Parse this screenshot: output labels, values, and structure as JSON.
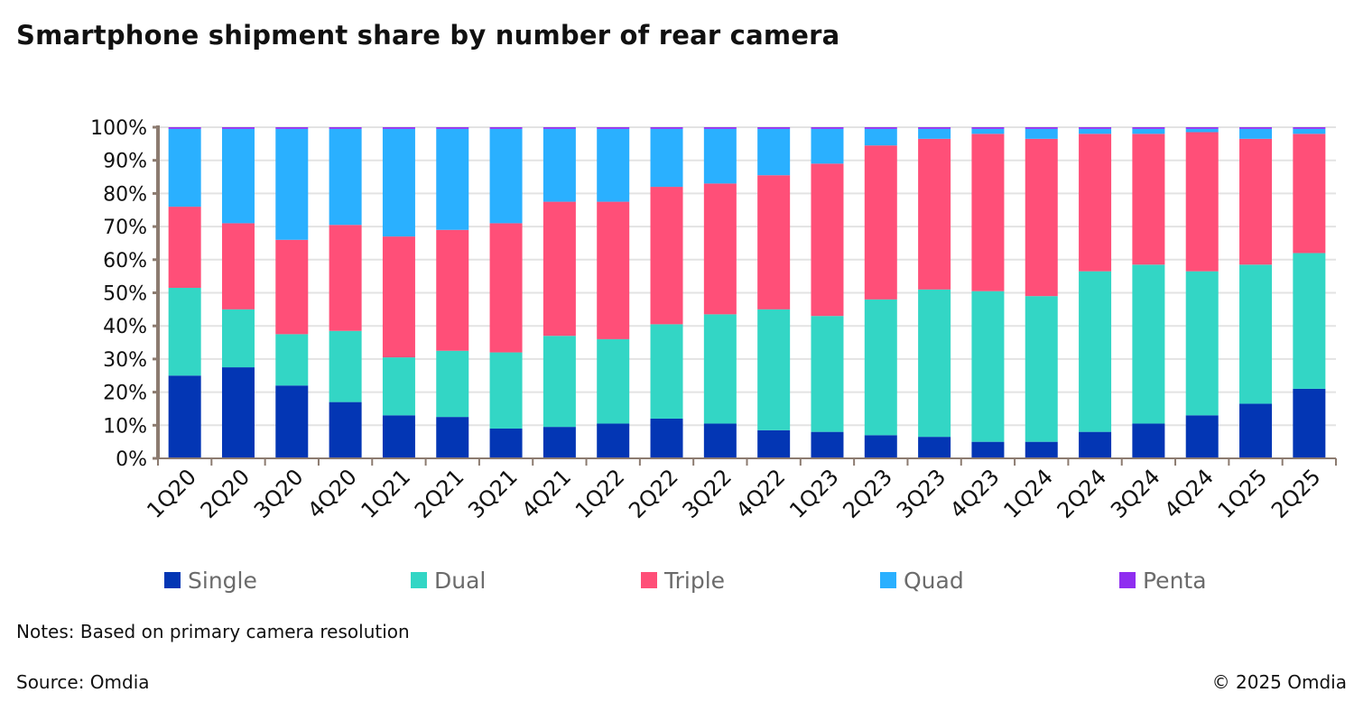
{
  "chart_data": {
    "type": "bar",
    "stacked": true,
    "title": "Smartphone shipment share by number of rear camera",
    "xlabel": "",
    "ylabel": "",
    "ylim": [
      0,
      100
    ],
    "yticks": [
      "0%",
      "10%",
      "20%",
      "30%",
      "40%",
      "50%",
      "60%",
      "70%",
      "80%",
      "90%",
      "100%"
    ],
    "grid": true,
    "legend_position": "bottom",
    "categories": [
      "1Q20",
      "2Q20",
      "3Q20",
      "4Q20",
      "1Q21",
      "2Q21",
      "3Q21",
      "4Q21",
      "1Q22",
      "2Q22",
      "3Q22",
      "4Q22",
      "1Q23",
      "2Q23",
      "3Q23",
      "4Q23",
      "1Q24",
      "2Q24",
      "3Q24",
      "4Q24",
      "1Q25",
      "2Q25"
    ],
    "series": [
      {
        "name": "Single",
        "color": "#0336b4",
        "values": [
          25,
          27.5,
          22,
          17,
          13,
          12.5,
          9,
          9.5,
          10.5,
          12,
          10.5,
          8.5,
          8,
          7,
          6.5,
          5,
          5,
          8,
          10.5,
          13,
          16.5,
          21
        ]
      },
      {
        "name": "Dual",
        "color": "#33d6c5",
        "values": [
          26.5,
          17.5,
          15.5,
          21.5,
          17.5,
          20,
          23,
          27.5,
          25.5,
          28.5,
          33,
          36.5,
          35,
          41,
          44.5,
          45.5,
          44,
          48.5,
          48,
          43.5,
          42,
          41
        ]
      },
      {
        "name": "Triple",
        "color": "#ff4f78",
        "values": [
          24.5,
          26,
          28.5,
          32,
          36.5,
          36.5,
          39,
          40.5,
          41.5,
          41.5,
          39.5,
          40.5,
          46,
          46.5,
          45.5,
          47.5,
          47.5,
          41.5,
          39.5,
          42,
          38,
          36
        ]
      },
      {
        "name": "Quad",
        "color": "#2ab0ff",
        "values": [
          23.5,
          28.5,
          33.5,
          29,
          32.5,
          30.5,
          28.5,
          22,
          22,
          17.5,
          16.5,
          14,
          10.5,
          5,
          3,
          1.5,
          3,
          1.5,
          1.5,
          1,
          3,
          1.5
        ]
      },
      {
        "name": "Penta",
        "color": "#8f2ef0",
        "values": [
          0.5,
          0.5,
          0.5,
          0.5,
          0.5,
          0.5,
          0.5,
          0.5,
          0.5,
          0.5,
          0.5,
          0.5,
          0.5,
          0.5,
          0.5,
          0.5,
          0.5,
          0.5,
          0.5,
          0.5,
          0.5,
          0.5
        ]
      }
    ]
  },
  "notes": "Notes: Based on primary camera resolution",
  "source": "Source: Omdia",
  "copyright": "© 2025 Omdia"
}
